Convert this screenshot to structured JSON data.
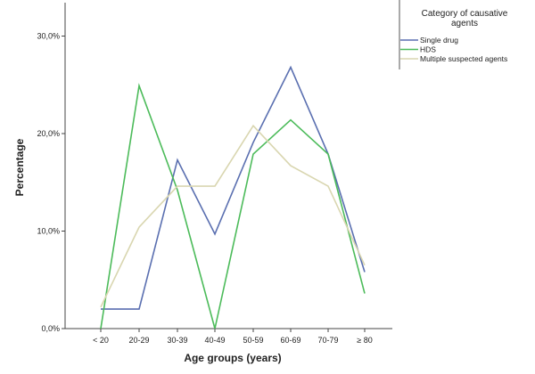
{
  "chart_data": {
    "type": "line",
    "title": "",
    "xlabel": "Age groups (years)",
    "ylabel": "Percentage",
    "categories": [
      "< 20",
      "20-29",
      "30-39",
      "40-49",
      "50-59",
      "60-69",
      "70-79",
      "≥ 80"
    ],
    "ylim": [
      0,
      33.2
    ],
    "yticks": [
      0,
      10,
      20,
      30
    ],
    "ytick_labels": [
      "0,0%",
      "10,0%",
      "20,0%",
      "30,0%"
    ],
    "grid": false,
    "legend": {
      "title": "Category of causative agents",
      "placement": "top-right"
    },
    "series": [
      {
        "name": "Single drug",
        "color": "#5a6fb0",
        "values": [
          2.0,
          2.0,
          17.3,
          9.7,
          19.1,
          26.8,
          17.9,
          5.8
        ]
      },
      {
        "name": "HDS",
        "color": "#4cbb5a",
        "values": [
          0.0,
          24.9,
          14.2,
          0.0,
          17.9,
          21.4,
          17.9,
          3.6
        ]
      },
      {
        "name": "Multiple suspected agents",
        "color": "#d9d6b0",
        "values": [
          2.2,
          10.4,
          14.6,
          14.6,
          20.8,
          16.7,
          14.6,
          6.5
        ]
      }
    ]
  }
}
